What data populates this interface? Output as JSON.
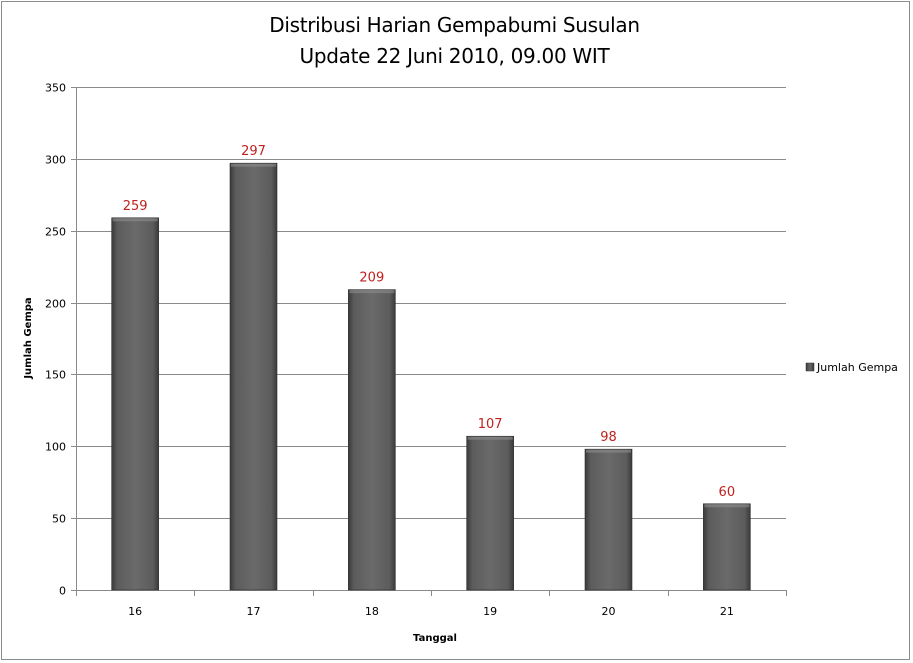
{
  "chart_data": {
    "type": "bar",
    "title_line1": "Distribusi Harian Gempabumi Susulan",
    "title_line2": "Update 22 Juni 2010, 09.00 WIT",
    "xlabel": "Tanggal",
    "ylabel": "Jumlah Gempa",
    "categories": [
      "16",
      "17",
      "18",
      "19",
      "20",
      "21"
    ],
    "series": [
      {
        "name": "Jumlah Gempa",
        "values": [
          259,
          297,
          209,
          107,
          98,
          60
        ]
      }
    ],
    "ylim": [
      0,
      350
    ],
    "yticks": [
      0,
      50,
      100,
      150,
      200,
      250,
      300,
      350
    ],
    "grid": true,
    "legend_position": "right",
    "bar_color": "#5a5a5a",
    "data_label_color": "#c0211f"
  }
}
